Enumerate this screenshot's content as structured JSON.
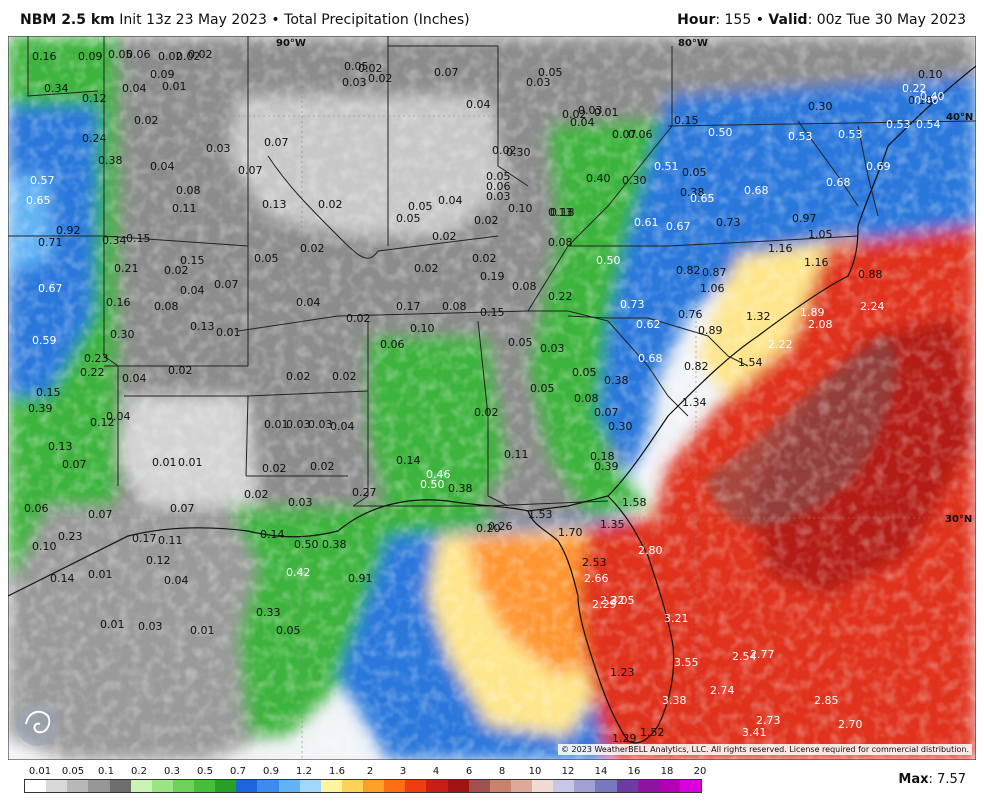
{
  "header": {
    "model": "NBM 2.5 km",
    "init": "Init 13z 23 May 2023",
    "bullet": "•",
    "product": "Total Precipitation (Inches)",
    "hour_label": "Hour",
    "hour_value": ": 155",
    "valid_label": "Valid",
    "valid_value": ": 00z Tue 30 May 2023"
  },
  "map": {
    "coordinate_labels": {
      "lon_90": "90°W",
      "lon_80": "80°W",
      "lat_40": "40°N",
      "lat_30": "30°N"
    },
    "value_labels": [
      {
        "text": "0.16",
        "tone": "dark"
      },
      {
        "text": "0.09",
        "tone": "dark"
      },
      {
        "text": "0.02",
        "tone": "dark"
      },
      {
        "text": "0.02",
        "tone": "dark"
      },
      {
        "text": "0.34",
        "tone": "dark"
      },
      {
        "text": "0.04",
        "tone": "dark"
      },
      {
        "text": "0.01",
        "tone": "dark"
      },
      {
        "text": "0.12",
        "tone": "dark"
      },
      {
        "text": "0.02",
        "tone": "dark"
      },
      {
        "text": "0.24",
        "tone": "dark"
      },
      {
        "text": "0.03",
        "tone": "dark"
      },
      {
        "text": "0.38",
        "tone": "dark"
      },
      {
        "text": "0.04",
        "tone": "dark"
      },
      {
        "text": "0.07",
        "tone": "dark"
      },
      {
        "text": "0.57",
        "tone": "light"
      },
      {
        "text": "0.65",
        "tone": "light"
      },
      {
        "text": "0.08",
        "tone": "dark"
      },
      {
        "text": "0.11",
        "tone": "dark"
      },
      {
        "text": "0.13",
        "tone": "dark"
      },
      {
        "text": "0.02",
        "tone": "dark"
      },
      {
        "text": "0.92",
        "tone": "dark"
      },
      {
        "text": "0.15",
        "tone": "dark"
      },
      {
        "text": "0.71",
        "tone": "dark"
      },
      {
        "text": "0.34",
        "tone": "dark"
      },
      {
        "text": "0.21",
        "tone": "dark"
      },
      {
        "text": "0.15",
        "tone": "dark"
      },
      {
        "text": "0.05",
        "tone": "dark"
      },
      {
        "text": "0.67",
        "tone": "light"
      },
      {
        "text": "0.04",
        "tone": "dark"
      },
      {
        "text": "0.07",
        "tone": "dark"
      },
      {
        "text": "0.16",
        "tone": "dark"
      },
      {
        "text": "0.08",
        "tone": "dark"
      },
      {
        "text": "0.13",
        "tone": "dark"
      },
      {
        "text": "0.01",
        "tone": "dark"
      },
      {
        "text": "0.30",
        "tone": "dark"
      },
      {
        "text": "0.59",
        "tone": "light"
      },
      {
        "text": "0.23",
        "tone": "dark"
      },
      {
        "text": "0.22",
        "tone": "dark"
      },
      {
        "text": "0.04",
        "tone": "dark"
      },
      {
        "text": "0.02",
        "tone": "dark"
      },
      {
        "text": "0.15",
        "tone": "dark"
      },
      {
        "text": "0.39",
        "tone": "dark"
      },
      {
        "text": "0.04",
        "tone": "dark"
      },
      {
        "text": "0.12",
        "tone": "dark"
      },
      {
        "text": "0.13",
        "tone": "dark"
      },
      {
        "text": "0.07",
        "tone": "dark"
      },
      {
        "text": "0.01",
        "tone": "dark"
      },
      {
        "text": "0.01",
        "tone": "dark"
      },
      {
        "text": "0.06",
        "tone": "dark"
      },
      {
        "text": "0.07",
        "tone": "dark"
      },
      {
        "text": "0.07",
        "tone": "dark"
      },
      {
        "text": "0.10",
        "tone": "dark"
      },
      {
        "text": "0.23",
        "tone": "dark"
      },
      {
        "text": "0.17",
        "tone": "dark"
      },
      {
        "text": "0.11",
        "tone": "dark"
      },
      {
        "text": "0.12",
        "tone": "dark"
      },
      {
        "text": "0.14",
        "tone": "dark"
      },
      {
        "text": "0.01",
        "tone": "dark"
      },
      {
        "text": "0.04",
        "tone": "dark"
      },
      {
        "text": "0.01",
        "tone": "dark"
      },
      {
        "text": "0.03",
        "tone": "dark"
      },
      {
        "text": "0.01",
        "tone": "dark"
      },
      {
        "text": "0.02",
        "tone": "dark"
      },
      {
        "text": "0.04",
        "tone": "dark"
      },
      {
        "text": "0.02",
        "tone": "dark"
      },
      {
        "text": "0.03",
        "tone": "dark"
      },
      {
        "text": "0.01",
        "tone": "dark"
      },
      {
        "text": "0.03",
        "tone": "dark"
      },
      {
        "text": "0.02",
        "tone": "dark"
      },
      {
        "text": "0.02",
        "tone": "dark"
      },
      {
        "text": "0.02",
        "tone": "dark"
      },
      {
        "text": "0.03",
        "tone": "dark"
      },
      {
        "text": "0.02",
        "tone": "dark"
      },
      {
        "text": "0.04",
        "tone": "dark"
      },
      {
        "text": "0.05",
        "tone": "dark"
      },
      {
        "text": "0.03",
        "tone": "dark"
      },
      {
        "text": "0.02",
        "tone": "dark"
      },
      {
        "text": "0.02",
        "tone": "dark"
      },
      {
        "text": "0.07",
        "tone": "dark"
      },
      {
        "text": "0.04",
        "tone": "dark"
      },
      {
        "text": "0.05",
        "tone": "dark"
      },
      {
        "text": "0.03",
        "tone": "dark"
      },
      {
        "text": "0.05",
        "tone": "dark"
      },
      {
        "text": "0.02",
        "tone": "dark"
      },
      {
        "text": "0.02",
        "tone": "dark"
      },
      {
        "text": "0.19",
        "tone": "dark"
      },
      {
        "text": "0.02",
        "tone": "dark"
      },
      {
        "text": "0.17",
        "tone": "dark"
      },
      {
        "text": "0.02",
        "tone": "dark"
      },
      {
        "text": "0.08",
        "tone": "dark"
      },
      {
        "text": "0.06",
        "tone": "dark"
      },
      {
        "text": "0.10",
        "tone": "dark"
      },
      {
        "text": "0.15",
        "tone": "dark"
      },
      {
        "text": "0.05",
        "tone": "dark"
      },
      {
        "text": "0.03",
        "tone": "dark"
      },
      {
        "text": "0.05",
        "tone": "dark"
      },
      {
        "text": "0.05",
        "tone": "dark"
      },
      {
        "text": "0.08",
        "tone": "dark"
      },
      {
        "text": "0.07",
        "tone": "dark"
      },
      {
        "text": "0.02",
        "tone": "dark"
      },
      {
        "text": "0.03",
        "tone": "dark"
      },
      {
        "text": "0.01",
        "tone": "dark"
      },
      {
        "text": "0.04",
        "tone": "dark"
      },
      {
        "text": "0.02",
        "tone": "dark"
      },
      {
        "text": "0.06",
        "tone": "dark"
      },
      {
        "text": "0.10",
        "tone": "dark"
      },
      {
        "text": "0.18",
        "tone": "dark"
      },
      {
        "text": "0.40",
        "tone": "dark"
      },
      {
        "text": "0.30",
        "tone": "dark"
      },
      {
        "text": "0.08",
        "tone": "dark"
      },
      {
        "text": "0.15",
        "tone": "dark"
      },
      {
        "text": "0.05",
        "tone": "dark"
      },
      {
        "text": "0.38",
        "tone": "dark"
      },
      {
        "text": "0.50",
        "tone": "light"
      },
      {
        "text": "0.53",
        "tone": "light"
      },
      {
        "text": "0.53",
        "tone": "light"
      },
      {
        "text": "0.53",
        "tone": "light"
      },
      {
        "text": "0.54",
        "tone": "light"
      },
      {
        "text": "0.51",
        "tone": "light"
      },
      {
        "text": "0.30",
        "tone": "dark"
      },
      {
        "text": "0.13",
        "tone": "dark"
      },
      {
        "text": "0.65",
        "tone": "light"
      },
      {
        "text": "0.68",
        "tone": "light"
      },
      {
        "text": "0.68",
        "tone": "light"
      },
      {
        "text": "0.69",
        "tone": "light"
      },
      {
        "text": "0.61",
        "tone": "light"
      },
      {
        "text": "0.67",
        "tone": "light"
      },
      {
        "text": "0.73",
        "tone": "dark"
      },
      {
        "text": "0.97",
        "tone": "dark"
      },
      {
        "text": "1.05",
        "tone": "dark"
      },
      {
        "text": "1.16",
        "tone": "dark"
      },
      {
        "text": "1.16",
        "tone": "dark"
      },
      {
        "text": "0.50",
        "tone": "light"
      },
      {
        "text": "0.82",
        "tone": "dark"
      },
      {
        "text": "0.87",
        "tone": "dark"
      },
      {
        "text": "1.06",
        "tone": "dark"
      },
      {
        "text": "0.88",
        "tone": "dark"
      },
      {
        "text": "0.22",
        "tone": "dark"
      },
      {
        "text": "0.73",
        "tone": "light"
      },
      {
        "text": "0.76",
        "tone": "dark"
      },
      {
        "text": "0.62",
        "tone": "light"
      },
      {
        "text": "0.89",
        "tone": "dark"
      },
      {
        "text": "1.32",
        "tone": "dark"
      },
      {
        "text": "1.89",
        "tone": "light"
      },
      {
        "text": "2.08",
        "tone": "light"
      },
      {
        "text": "2.24",
        "tone": "light"
      },
      {
        "text": "0.68",
        "tone": "light"
      },
      {
        "text": "2.22",
        "tone": "light"
      },
      {
        "text": "1.54",
        "tone": "dark"
      },
      {
        "text": "0.82",
        "tone": "dark"
      },
      {
        "text": "0.38",
        "tone": "dark"
      },
      {
        "text": "1.34",
        "tone": "dark"
      },
      {
        "text": "0.30",
        "tone": "dark"
      },
      {
        "text": "0.18",
        "tone": "dark"
      },
      {
        "text": "0.39",
        "tone": "dark"
      },
      {
        "text": "0.11",
        "tone": "dark"
      },
      {
        "text": "0.14",
        "tone": "dark"
      },
      {
        "text": "0.46",
        "tone": "light"
      },
      {
        "text": "0.38",
        "tone": "dark"
      },
      {
        "text": "0.50",
        "tone": "light"
      },
      {
        "text": "0.27",
        "tone": "dark"
      },
      {
        "text": "1.58",
        "tone": "dark"
      },
      {
        "text": "1.53",
        "tone": "dark"
      },
      {
        "text": "1.35",
        "tone": "dark"
      },
      {
        "text": "1.70",
        "tone": "dark"
      },
      {
        "text": "0.20",
        "tone": "dark"
      },
      {
        "text": "0.14",
        "tone": "dark"
      },
      {
        "text": "0.50",
        "tone": "dark"
      },
      {
        "text": "0.38",
        "tone": "dark"
      },
      {
        "text": "0.42",
        "tone": "light"
      },
      {
        "text": "0.91",
        "tone": "dark"
      },
      {
        "text": "0.33",
        "tone": "dark"
      },
      {
        "text": "0.05",
        "tone": "dark"
      },
      {
        "text": "2.80",
        "tone": "light"
      },
      {
        "text": "2.53",
        "tone": "dark"
      },
      {
        "text": "2.66",
        "tone": "light"
      },
      {
        "text": "2.32",
        "tone": "light"
      },
      {
        "text": "2.05",
        "tone": "light"
      },
      {
        "text": "2.29",
        "tone": "light"
      },
      {
        "text": "3.21",
        "tone": "light"
      },
      {
        "text": "3.55",
        "tone": "light"
      },
      {
        "text": "2.54",
        "tone": "light"
      },
      {
        "text": "2.77",
        "tone": "light"
      },
      {
        "text": "1.23",
        "tone": "dark"
      },
      {
        "text": "2.74",
        "tone": "light"
      },
      {
        "text": "3.38",
        "tone": "light"
      },
      {
        "text": "2.85",
        "tone": "light"
      },
      {
        "text": "2.73",
        "tone": "light"
      },
      {
        "text": "2.70",
        "tone": "light"
      },
      {
        "text": "3.41",
        "tone": "light"
      },
      {
        "text": "1.52",
        "tone": "dark"
      },
      {
        "text": "1.29",
        "tone": "dark"
      },
      {
        "text": "0.40",
        "tone": "light"
      },
      {
        "text": "0.18",
        "tone": "dark"
      },
      {
        "text": "0.22",
        "tone": "light"
      },
      {
        "text": "0.10",
        "tone": "dark"
      },
      {
        "text": "0.30",
        "tone": "dark"
      },
      {
        "text": "0.40",
        "tone": "light"
      },
      {
        "text": "0.05",
        "tone": "dark"
      },
      {
        "text": "0.06",
        "tone": "dark"
      },
      {
        "text": "0.02",
        "tone": "dark"
      },
      {
        "text": "0.09",
        "tone": "dark"
      },
      {
        "text": "0.07",
        "tone": "dark"
      },
      {
        "text": "0.05",
        "tone": "dark"
      },
      {
        "text": "0.04",
        "tone": "dark"
      },
      {
        "text": "0.02",
        "tone": "dark"
      },
      {
        "text": "0.05",
        "tone": "dark"
      },
      {
        "text": "0.03",
        "tone": "dark"
      },
      {
        "text": "0.08",
        "tone": "dark"
      },
      {
        "text": "0.02",
        "tone": "dark"
      },
      {
        "text": "0.07",
        "tone": "dark"
      },
      {
        "text": "0.06",
        "tone": "dark"
      },
      {
        "text": "0.26",
        "tone": "dark"
      },
      {
        "text": "0.02",
        "tone": "dark"
      }
    ]
  },
  "copyright": "© 2023 WeatherBELL Analytics, LLC. All rights reserved. License required for commercial distribution.",
  "legend": {
    "ticks": [
      "0.01",
      "0.05",
      "0.1",
      "0.2",
      "0.3",
      "0.5",
      "0.7",
      "0.9",
      "1.2",
      "1.6",
      "2",
      "3",
      "4",
      "6",
      "8",
      "10",
      "12",
      "14",
      "16",
      "18",
      "20"
    ],
    "colors": [
      "#ffffff",
      "#d9d9d9",
      "#b8b8b8",
      "#969696",
      "#6e6e6e",
      "#c8f5b4",
      "#9be682",
      "#6ed25a",
      "#46be3c",
      "#28a028",
      "#1e64dc",
      "#3c8cf0",
      "#64b4f5",
      "#a0d7fa",
      "#fff5a0",
      "#ffd25a",
      "#ffa028",
      "#ff6e14",
      "#f03c14",
      "#c81e14",
      "#a01414",
      "#a05050",
      "#c8826e",
      "#dcaa96",
      "#f0dcd2",
      "#c8c8e6",
      "#a0a0d2",
      "#7878be",
      "#6e3ca0",
      "#8c14a0",
      "#b400b4",
      "#dc00dc"
    ]
  },
  "max": {
    "label": "Max",
    "value": ": 7.57"
  },
  "colors": {
    "ocean": "#f2f4f8",
    "gray": "#8a8a8a",
    "green": "#3cb43c",
    "blue": "#2a78dc",
    "red": "#e0321e",
    "darkred": "#b41e14",
    "yellow": "#ffe68c"
  }
}
